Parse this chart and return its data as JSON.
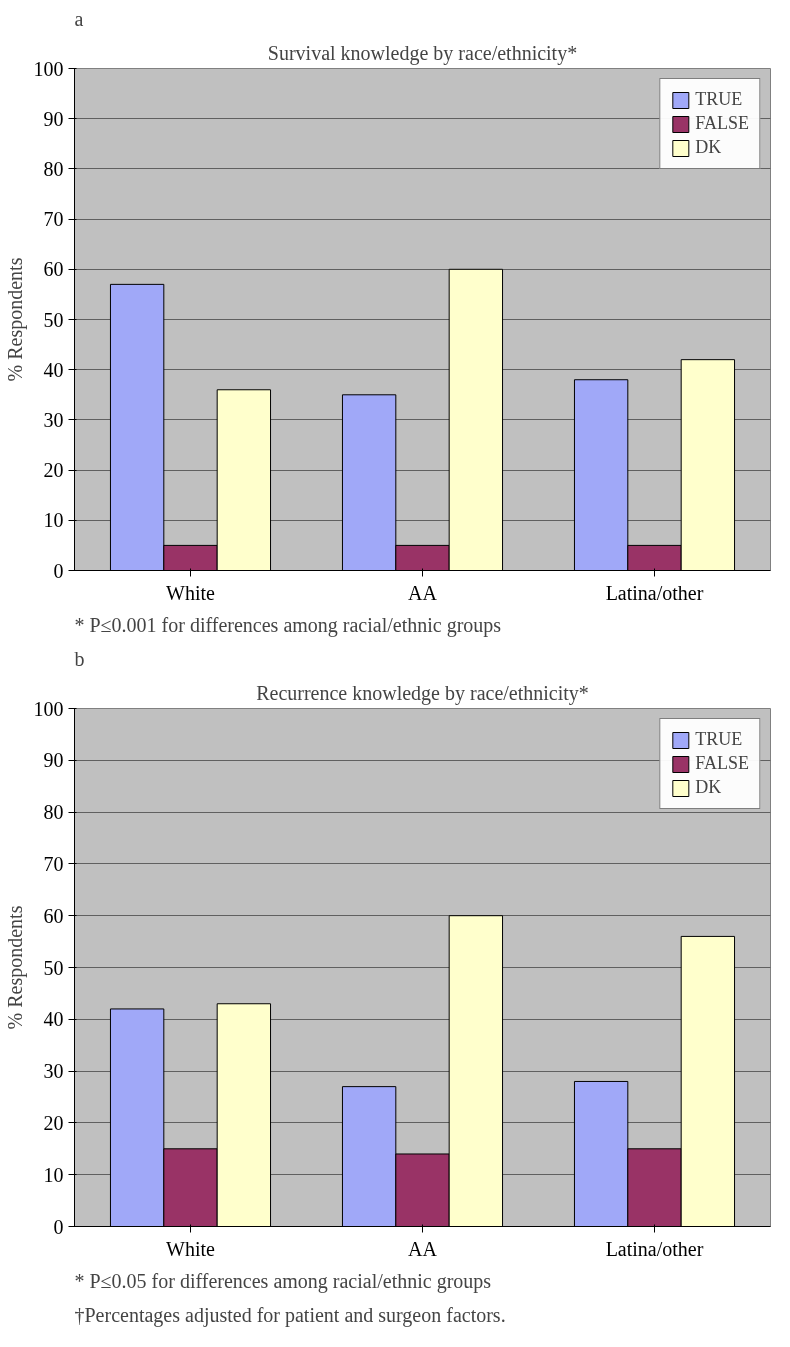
{
  "chart_data": [
    {
      "type": "bar",
      "title": "Survival knowledge by race/ethnicity*",
      "ylabel": "% Respondents",
      "annotations": [
        "a",
        "* P≤0.001 for differences among racial/ethnic groups"
      ],
      "categories": [
        "White",
        "AA",
        "Latina/other"
      ],
      "series": [
        {
          "name": "TRUE",
          "color": "#a0a8f8",
          "values": [
            57,
            35,
            38
          ]
        },
        {
          "name": "FALSE",
          "color": "#993366",
          "values": [
            5,
            5,
            5
          ]
        },
        {
          "name": "DK",
          "color": "#ffffcc",
          "values": [
            36,
            60,
            42
          ]
        }
      ],
      "ylim": [
        0,
        100
      ],
      "yticks": [
        0,
        10,
        20,
        30,
        40,
        50,
        60,
        70,
        80,
        90,
        100
      ],
      "grid": "y",
      "legend": "top right"
    },
    {
      "type": "bar",
      "title": "Recurrence knowledge by race/ethnicity*",
      "ylabel": "% Respondents",
      "annotations": [
        "b",
        "* P≤0.05 for differences among racial/ethnic groups",
        "†Percentages adjusted for patient and surgeon factors."
      ],
      "categories": [
        "White",
        "AA",
        "Latina/other"
      ],
      "series": [
        {
          "name": "TRUE",
          "color": "#a0a8f8",
          "values": [
            42,
            27,
            28
          ]
        },
        {
          "name": "FALSE",
          "color": "#993366",
          "values": [
            15,
            14,
            15
          ]
        },
        {
          "name": "DK",
          "color": "#ffffcc",
          "values": [
            43,
            60,
            56
          ]
        }
      ],
      "ylim": [
        0,
        100
      ],
      "yticks": [
        0,
        10,
        20,
        30,
        40,
        50,
        60,
        70,
        80,
        90,
        100
      ],
      "grid": "y",
      "legend": "top right"
    }
  ]
}
